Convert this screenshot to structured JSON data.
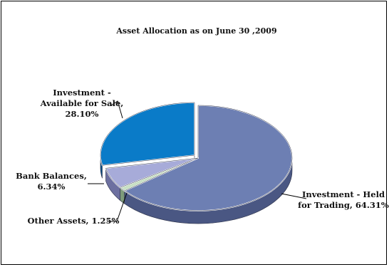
{
  "chart_data": {
    "type": "pie",
    "title": "Asset Allocation as on June 30 ,2009",
    "slices": [
      {
        "name": "Investment - Held for Trading",
        "value": 64.31,
        "label_lines": [
          "Investment - Held",
          "for Trading, 64.31%"
        ],
        "color_top": "#6d7fb3",
        "color_side": "#4a5783"
      },
      {
        "name": "Other Assets",
        "value": 1.25,
        "label_lines": [
          "Other Assets, 1.25%"
        ],
        "color_top": "#c8e0c4",
        "color_side": "#7e9a7a"
      },
      {
        "name": "Bank Balances",
        "value": 6.34,
        "label_lines": [
          "Bank Balances,",
          "6.34%"
        ],
        "color_top": "#a7abd9",
        "color_side": "#6d70a0"
      },
      {
        "name": "Investment - Available for Sale",
        "value": 28.1,
        "label_lines": [
          "Investment -",
          "Available for Sale,",
          "28.10%"
        ],
        "color_top": "#0a7bc8",
        "color_side": "#0b4f85"
      }
    ]
  }
}
